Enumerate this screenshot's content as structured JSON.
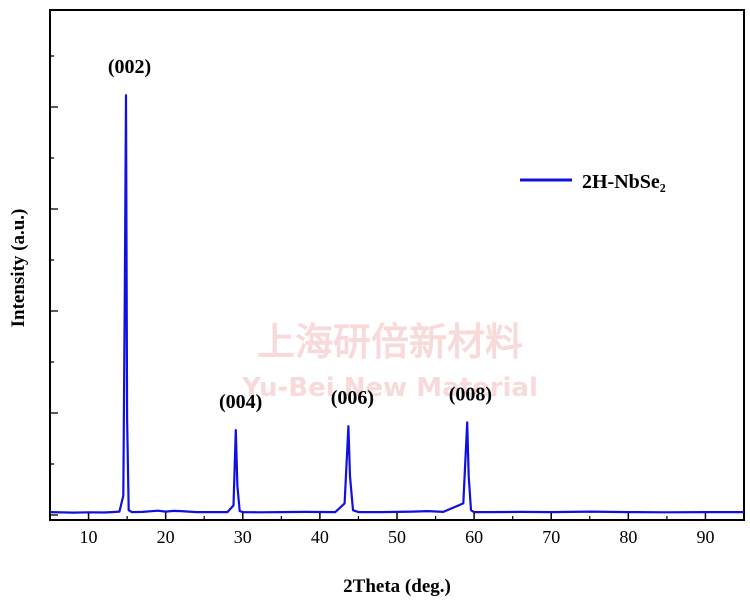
{
  "chart_data": {
    "type": "line",
    "xlabel": "2Theta (deg.)",
    "ylabel": "Intensity (a.u.)",
    "xlim": [
      5,
      95
    ],
    "x_ticks": [
      10,
      20,
      30,
      40,
      50,
      60,
      70,
      80,
      90
    ],
    "y_tick_labels_shown": false,
    "legend": {
      "position": "top-right"
    },
    "series": [
      {
        "name": "2H-NbSe₂",
        "color": "#1010e0",
        "x": [
          5,
          8,
          10,
          12,
          13,
          14,
          14.5,
          14.7,
          14.85,
          15.0,
          15.2,
          15.6,
          17,
          19,
          20,
          21,
          22,
          24,
          26,
          28,
          28.8,
          29.1,
          29.3,
          29.6,
          30,
          32,
          35,
          38,
          42,
          43.2,
          43.7,
          43.9,
          44.3,
          45,
          48,
          52,
          54,
          56,
          58.6,
          59.1,
          59.3,
          59.6,
          60,
          62,
          66,
          70,
          75,
          80,
          85,
          90,
          95
        ],
        "y": [
          3,
          2.5,
          2.8,
          2.6,
          3,
          3.5,
          20,
          230,
          435,
          100,
          5,
          3,
          3.2,
          4.5,
          3.5,
          4.2,
          4,
          3,
          3,
          3,
          10,
          88,
          30,
          4,
          3,
          2.8,
          3,
          3.2,
          3,
          12,
          92,
          40,
          5,
          3,
          3,
          3.5,
          4,
          3.2,
          12,
          96,
          40,
          5,
          3,
          3,
          3.2,
          3,
          3.5,
          3,
          2.8,
          3,
          3
        ]
      }
    ],
    "annotations": [
      {
        "text": "(002)",
        "x": 14.8
      },
      {
        "text": "(004)",
        "x": 29.2
      },
      {
        "text": "(006)",
        "x": 43.7
      },
      {
        "text": "(008)",
        "x": 59.0
      }
    ]
  },
  "watermark": {
    "line1": "上海研倍新材料",
    "line2": "Yu-Bei New Material"
  }
}
